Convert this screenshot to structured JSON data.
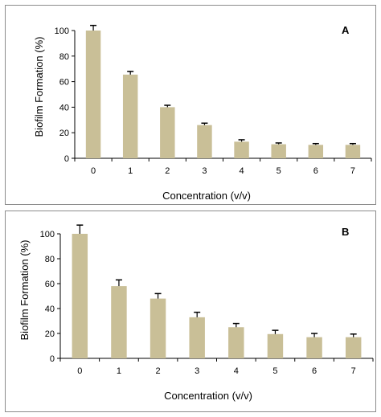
{
  "chart_data": [
    {
      "type": "bar",
      "panel_label": "A",
      "categories": [
        "0",
        "1",
        "2",
        "3",
        "4",
        "5",
        "6",
        "7"
      ],
      "values": [
        100,
        65.5,
        40,
        26,
        13,
        11,
        10.5,
        10.5
      ],
      "errors": [
        4,
        2.5,
        1.5,
        1.5,
        1.5,
        1,
        1,
        1
      ],
      "xlabel": "Concentration (v/v)",
      "ylabel": "Biofilm Formation (%)",
      "ylim": [
        0,
        100
      ],
      "yticks": [
        "0",
        "20",
        "40",
        "60",
        "80",
        "100"
      ],
      "bar_color": "#c9bf97",
      "error_color": "#000000",
      "grid": false
    },
    {
      "type": "bar",
      "panel_label": "B",
      "categories": [
        "0",
        "1",
        "2",
        "3",
        "4",
        "5",
        "6",
        "7"
      ],
      "values": [
        100,
        58,
        48,
        33,
        25,
        19.5,
        17,
        17
      ],
      "errors": [
        7,
        5,
        4,
        4,
        3,
        3,
        3,
        2.5
      ],
      "xlabel": "Concentration (v/v)",
      "ylabel": "Biofilm Formation (%)",
      "ylim": [
        0,
        100
      ],
      "yticks": [
        "0",
        "20",
        "40",
        "60",
        "80",
        "100"
      ],
      "bar_color": "#c9bf97",
      "error_color": "#000000",
      "grid": false
    }
  ]
}
